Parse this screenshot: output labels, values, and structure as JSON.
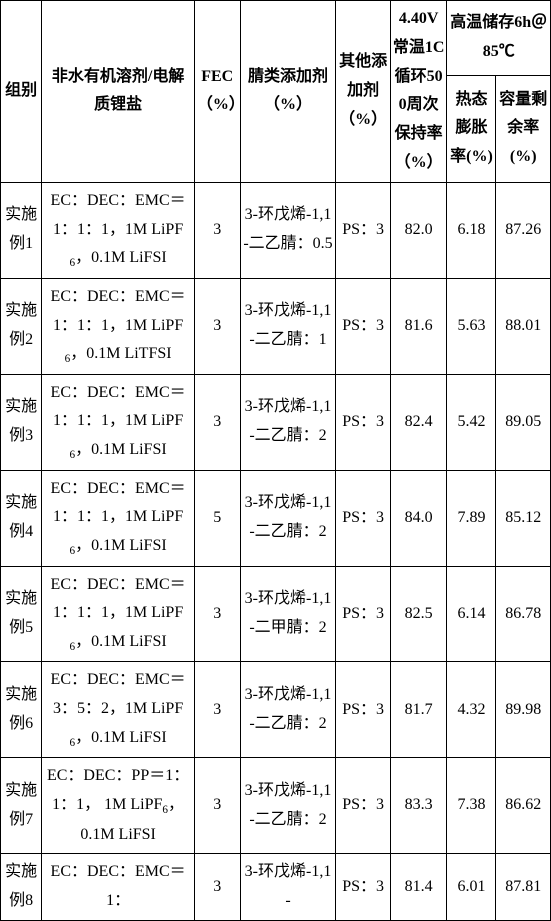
{
  "table": {
    "font_size_pt": 10,
    "border_color": "#000000",
    "background_color": "#ffffff",
    "text_color": "#000000",
    "header": {
      "group": "组别",
      "solvent": "非水有机溶剂/电解质锂盐",
      "fec": "FEC（%）",
      "nitrile": "腈类添加剂（%）",
      "other": "其他添加剂（%）",
      "cycle": "4.40V常温1C循环500周次保持率（%）",
      "storage_top": "高温储存6h＠85℃",
      "expand": "热态膨胀率(%)",
      "capacity": "容量剩余率(%)"
    },
    "rows": [
      {
        "group": "实施例1",
        "solvent": "EC：DEC：EMC＝1：1：1，1M LiPF₆，0.1M LiFSI",
        "fec": "3",
        "nitrile": "3-环戊烯-1,1-二乙腈：0.5",
        "other": "PS：3",
        "cycle": "82.0",
        "expand": "6.18",
        "capacity": "87.26"
      },
      {
        "group": "实施例2",
        "solvent": "EC：DEC：EMC＝1：1：1，1M LiPF₆，0.1M LiTFSI",
        "fec": "3",
        "nitrile": "3-环戊烯-1,1-二乙腈：1",
        "other": "PS：3",
        "cycle": "81.6",
        "expand": "5.63",
        "capacity": "88.01"
      },
      {
        "group": "实施例3",
        "solvent": "EC：DEC：EMC＝1：1：1，1M LiPF₆，0.1M LiFSI",
        "fec": "3",
        "nitrile": "3-环戊烯-1,1-二乙腈：2",
        "other": "PS：3",
        "cycle": "82.4",
        "expand": "5.42",
        "capacity": "89.05"
      },
      {
        "group": "实施例4",
        "solvent": "EC：DEC：EMC＝1：1：1，1M LiPF₆，0.1M LiFSI",
        "fec": "5",
        "nitrile": "3-环戊烯-1,1-二乙腈：2",
        "other": "PS：3",
        "cycle": "84.0",
        "expand": "7.89",
        "capacity": "85.12"
      },
      {
        "group": "实施例5",
        "solvent": "EC：DEC：EMC＝1：1：1，1M LiPF₆，0.1M LiFSI",
        "fec": "3",
        "nitrile": "3-环戊烯-1,1-二甲腈：2",
        "other": "PS：3",
        "cycle": "82.5",
        "expand": "6.14",
        "capacity": "86.78"
      },
      {
        "group": "实施例6",
        "solvent": "EC：DEC：EMC＝3：5：2，1M LiPF₆，0.1M LiFSI",
        "fec": "3",
        "nitrile": "3-环戊烯-1,1-二乙腈：2",
        "other": "PS：3",
        "cycle": "81.7",
        "expand": "4.32",
        "capacity": "89.98"
      },
      {
        "group": "实施例7",
        "solvent": "EC：DEC：PP＝1：1：1， 1M LiPF₆， 0.1M LiFSI",
        "fec": "3",
        "nitrile": "3-环戊烯-1,1-二乙腈：2",
        "other": "PS：3",
        "cycle": "83.3",
        "expand": "7.38",
        "capacity": "86.62"
      },
      {
        "group": "实施例8",
        "solvent": "EC：DEC：EMC＝1：",
        "fec": "3",
        "nitrile": "3-环戊烯-1,1-",
        "other": "PS：3",
        "cycle": "81.4",
        "expand": "6.01",
        "capacity": "87.81"
      }
    ]
  }
}
